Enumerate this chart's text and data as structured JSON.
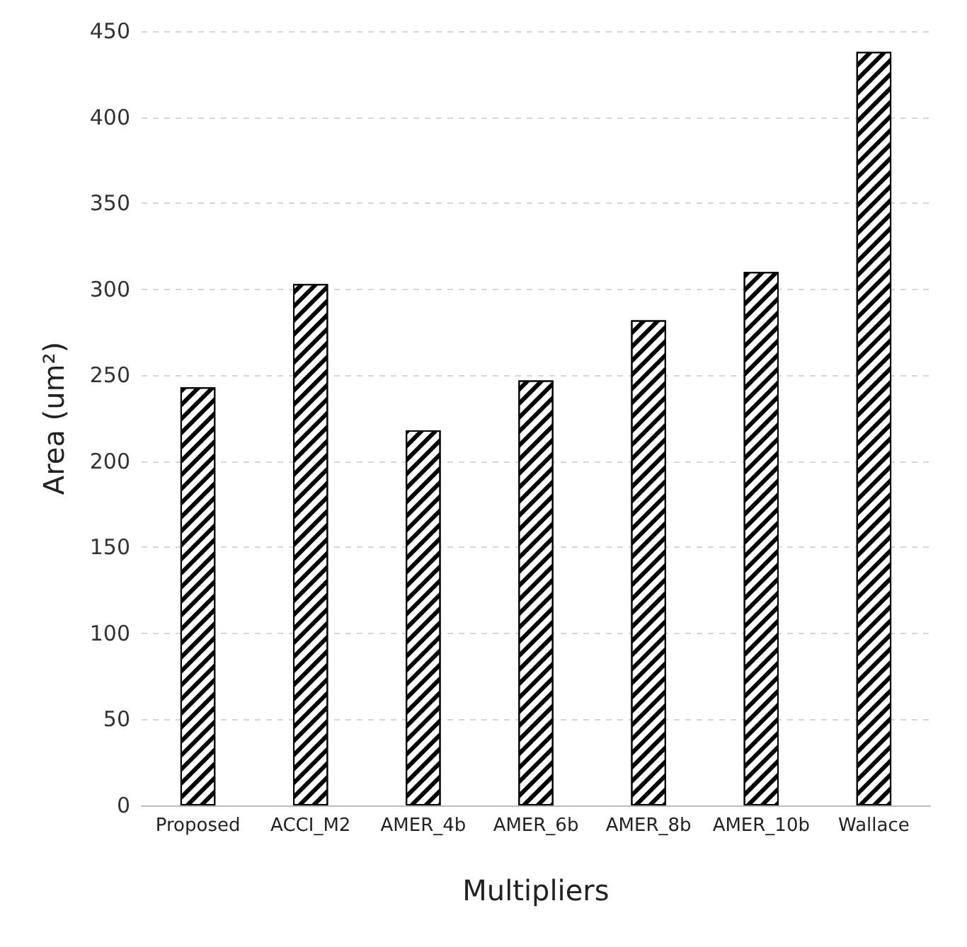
{
  "chart_data": {
    "type": "bar",
    "xlabel": "Multipliers",
    "ylabel": "Area (um²)",
    "categories": [
      "Proposed",
      "ACCI_M2",
      "AMER_4b",
      "AMER_6b",
      "AMER_8b",
      "AMER_10b",
      "Wallace"
    ],
    "values": [
      243,
      303,
      218,
      247,
      282,
      310,
      438
    ],
    "color": "#000000",
    "ylim": [
      0,
      450
    ],
    "yticks": [
      0,
      50,
      100,
      150,
      200,
      250,
      300,
      350,
      400,
      450
    ],
    "grid": "y"
  }
}
